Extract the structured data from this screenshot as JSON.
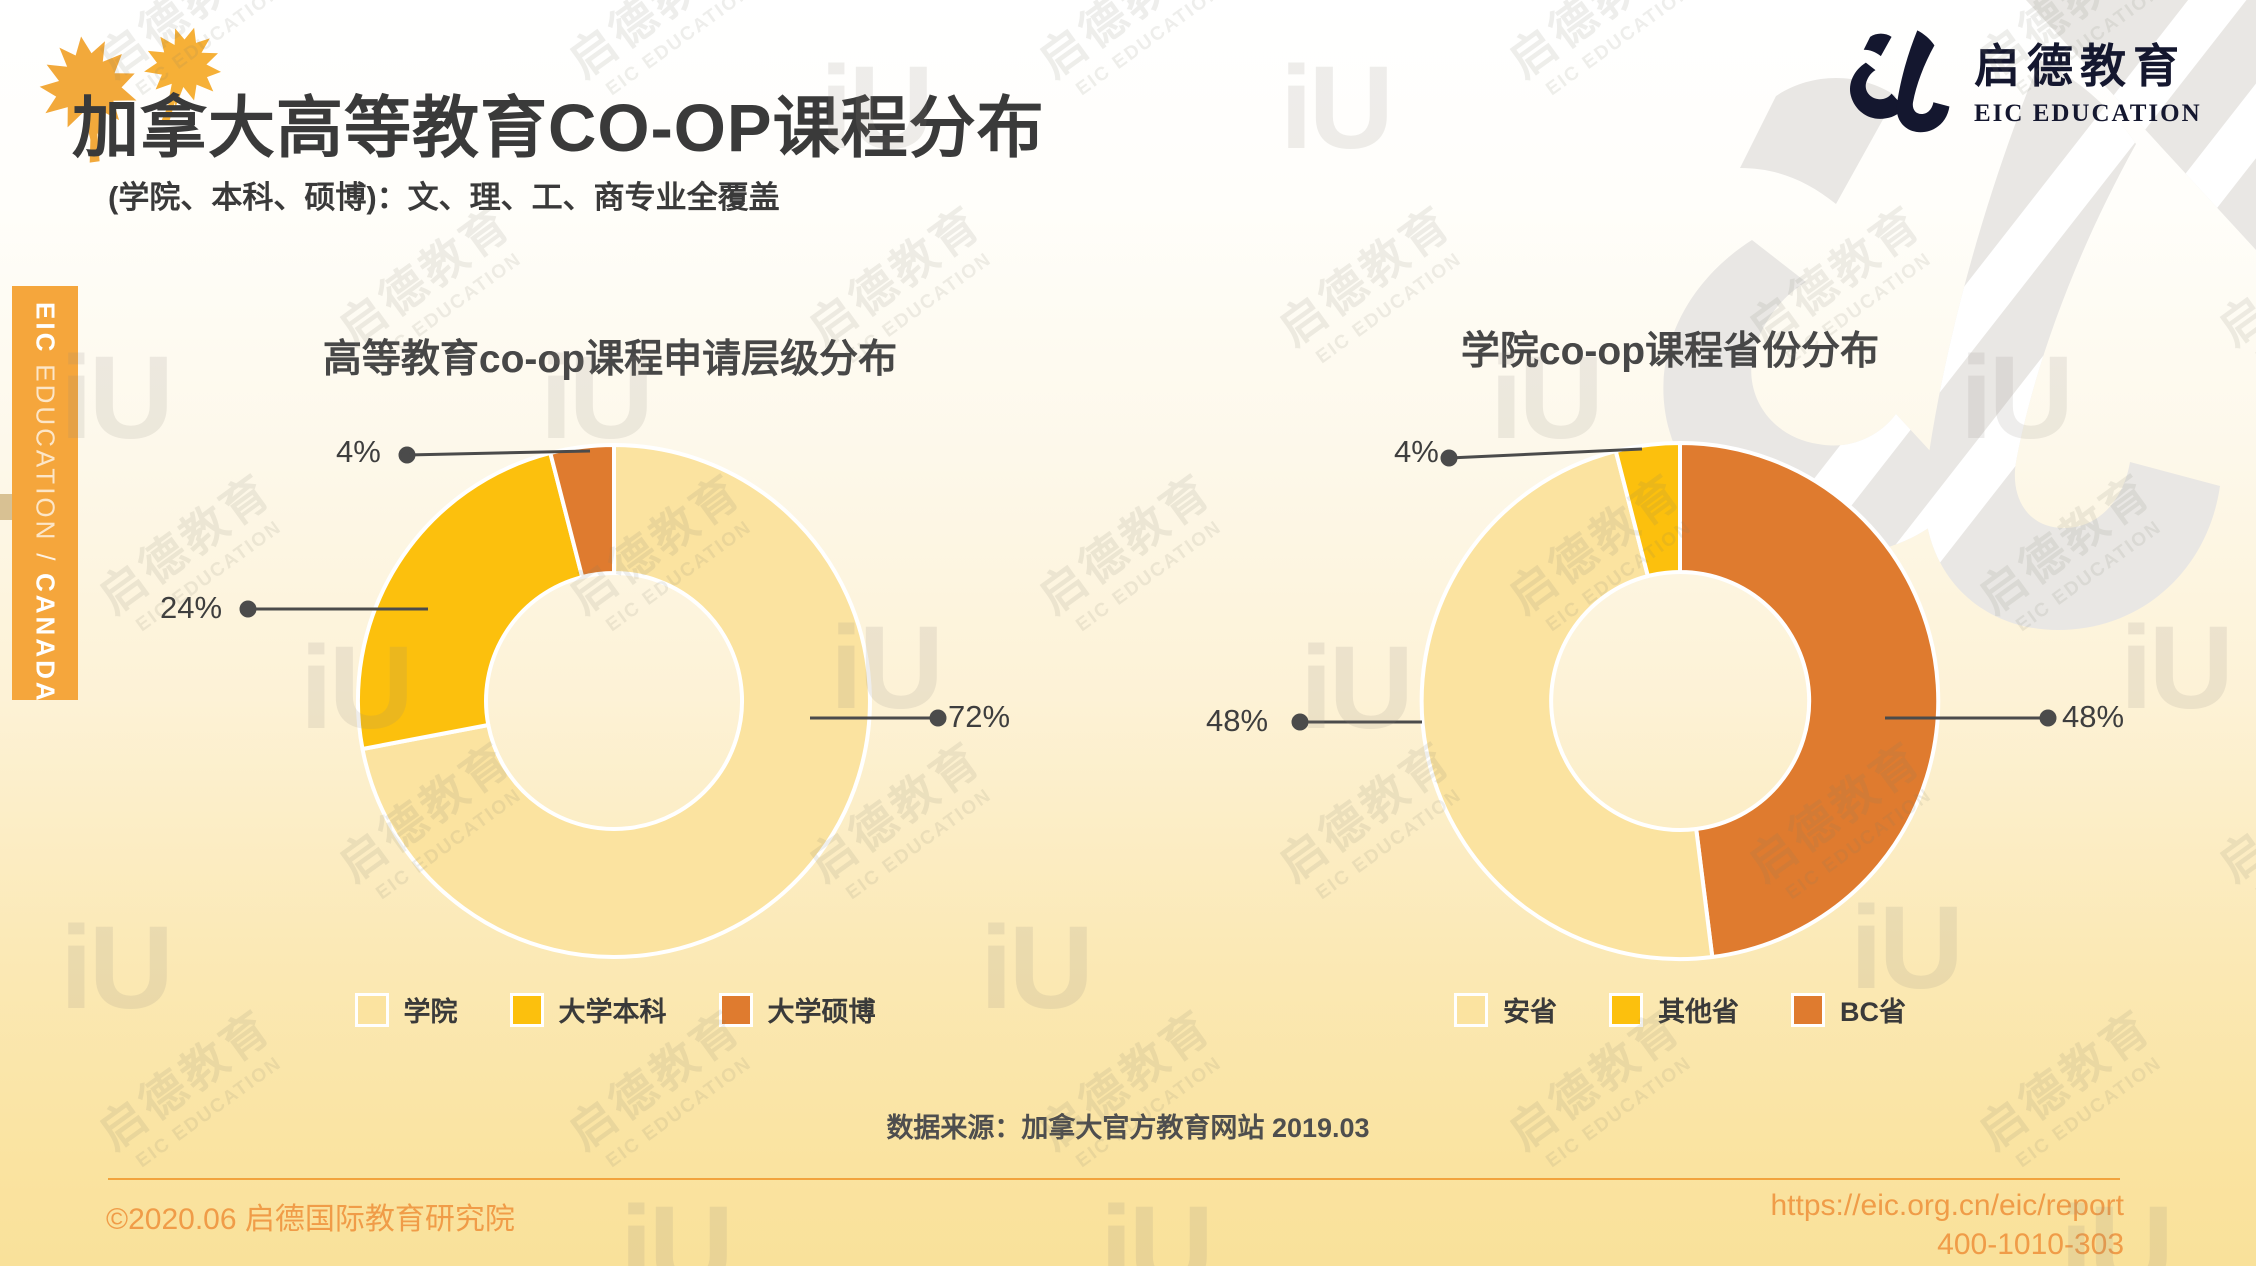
{
  "header": {
    "title": "加拿大高等教育CO-OP课程分布",
    "subtitle": "(学院、本科、硕博)：文、理、工、商专业全覆盖"
  },
  "brand": {
    "logo_cn": "启德教育",
    "logo_en": "EIC EDUCATION"
  },
  "sidebar": {
    "eic": "EIC",
    "education": " EDUCATION",
    "separator": " / ",
    "canada": "CANADA"
  },
  "watermark": {
    "line1": "启德教育",
    "line2": "EIC EDUCATION",
    "glyph": "iU"
  },
  "chart_data": [
    {
      "type": "pie",
      "donut": true,
      "title": "高等教育co-op课程申请层级分布",
      "legend_position": "bottom",
      "start_angle_deg": 0,
      "direction": "clockwise",
      "slices": [
        {
          "label": "学院",
          "value": 72,
          "pct": "72%",
          "color": "#FBE3A0"
        },
        {
          "label": "大学本科",
          "value": 24,
          "pct": "24%",
          "color": "#FCC00D"
        },
        {
          "label": "大学硕博",
          "value": 4,
          "pct": "4%",
          "color": "#DF7B2F"
        }
      ],
      "legend": [
        {
          "label": "学院",
          "color": "#FBE3A0"
        },
        {
          "label": "大学本科",
          "color": "#FCC00D"
        },
        {
          "label": "大学硕博",
          "color": "#DF7B2F"
        }
      ]
    },
    {
      "type": "pie",
      "donut": true,
      "title": "学院co-op课程省份分布",
      "legend_position": "bottom",
      "start_angle_deg": 0,
      "direction": "clockwise",
      "slices": [
        {
          "label": "BC省",
          "value": 48,
          "pct": "48%",
          "color": "#DF7B2F"
        },
        {
          "label": "安省",
          "value": 48,
          "pct": "48%",
          "color": "#FBE3A0"
        },
        {
          "label": "其他省",
          "value": 4,
          "pct": "4%",
          "color": "#FCC00D"
        }
      ],
      "legend": [
        {
          "label": "安省",
          "color": "#FBE3A0"
        },
        {
          "label": "其他省",
          "color": "#FCC00D"
        },
        {
          "label": "BC省",
          "color": "#DF7B2F"
        }
      ]
    }
  ],
  "source_note": "数据来源：加拿大官方教育网站 2019.03",
  "footer": {
    "copyright": "©2020.06 启德国际教育研究院",
    "url": "https://eic.org.cn/eic/report",
    "phone": "400-1010-303"
  },
  "colors": {
    "accent_orange": "#F5A63C",
    "slice_yellow": "#FBE3A0",
    "slice_amber": "#FCC00D",
    "slice_orange": "#DF7B2F",
    "logo_navy": "#14172F",
    "footer_text": "#F09C48",
    "leader_line": "#4B4B4B"
  }
}
